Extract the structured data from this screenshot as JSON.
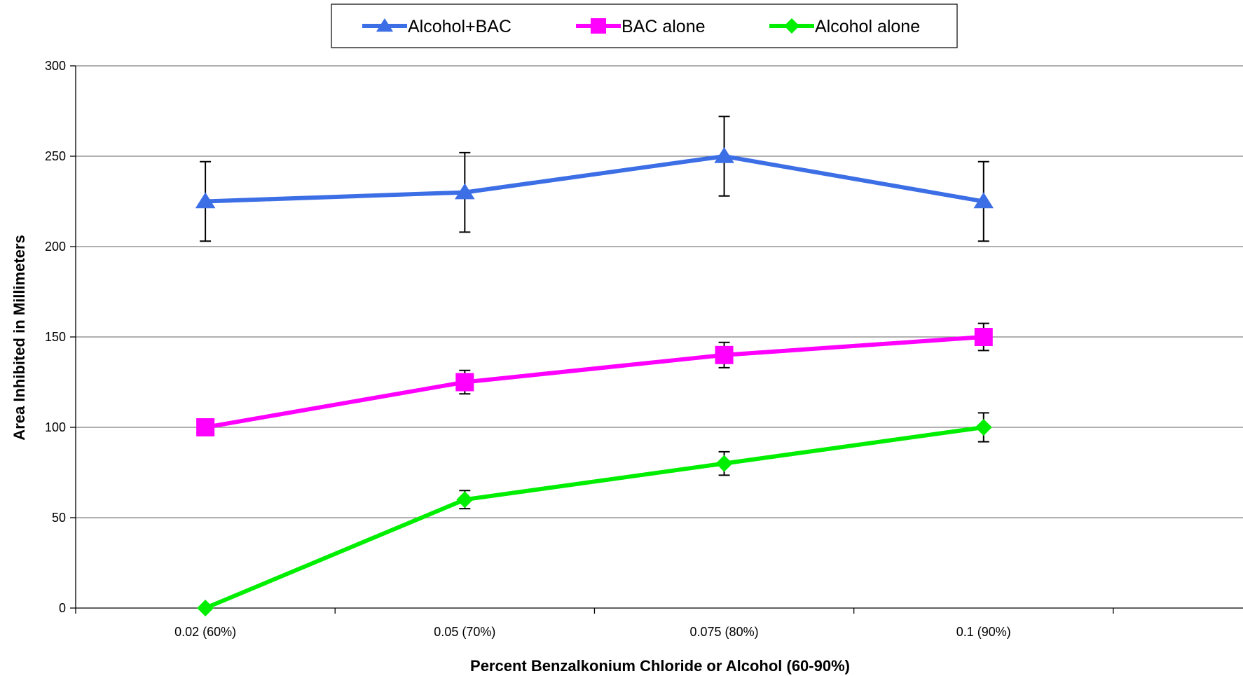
{
  "chart_data": {
    "type": "line",
    "title": "",
    "xlabel": "Percent Benzalkonium Chloride or Alcohol (60-90%)",
    "ylabel": "Area Inhibited in Millimeters",
    "categories": [
      "0.02 (60%)",
      "0.05 (70%)",
      "0.075 (80%)",
      "0.1 (90%)"
    ],
    "ylim": [
      0,
      300
    ],
    "yticks": [
      0,
      50,
      100,
      150,
      200,
      250,
      300
    ],
    "grid": true,
    "legend_position": "top-center",
    "series": [
      {
        "name": "Alcohol+BAC",
        "color": "#3c6ee6",
        "marker": "triangle",
        "values": [
          225,
          230,
          250,
          225
        ],
        "errors": [
          22,
          22,
          22,
          22
        ]
      },
      {
        "name": "BAC alone",
        "color": "#ff00ff",
        "marker": "square",
        "values": [
          100,
          125,
          140,
          150
        ],
        "errors": [
          0,
          6.5,
          7,
          7.5
        ]
      },
      {
        "name": "Alcohol alone",
        "color": "#00ee00",
        "marker": "diamond",
        "values": [
          0,
          60,
          80,
          100
        ],
        "errors": [
          0,
          5,
          6.5,
          8
        ]
      }
    ]
  }
}
